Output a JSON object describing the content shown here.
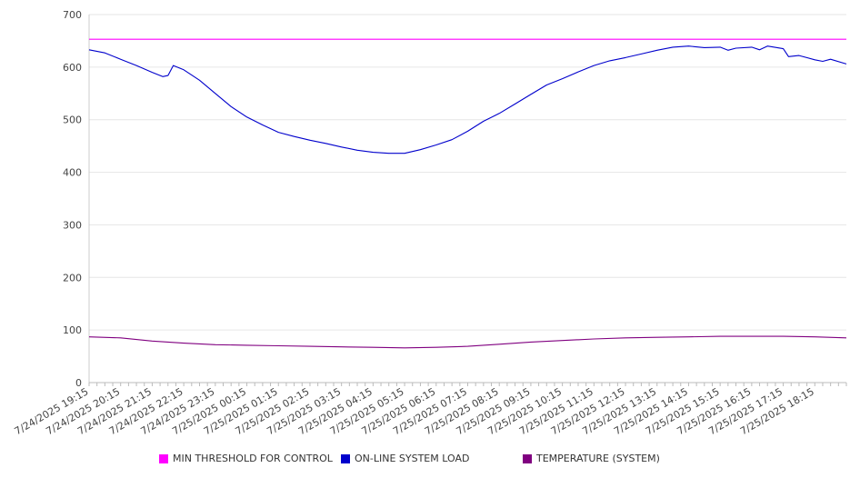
{
  "chart_data": {
    "type": "line",
    "title": "",
    "xlabel": "",
    "ylabel": "",
    "ylim": [
      0,
      700
    ],
    "y_ticks": [
      "0",
      "100",
      "200",
      "300",
      "400",
      "500",
      "600",
      "700"
    ],
    "x_start": "7/24/2025 19:15",
    "x_end": "7/25/2025 19:15",
    "x_tick_labels": [
      "7/24/2025 19:15",
      "7/24/2025 20:15",
      "7/24/2025 21:15",
      "7/24/2025 22:15",
      "7/24/2025 23:15",
      "7/25/2025 00:15",
      "7/25/2025 01:15",
      "7/25/2025 02:15",
      "7/25/2025 03:15",
      "7/25/2025 04:15",
      "7/25/2025 05:15",
      "7/25/2025 06:15",
      "7/25/2025 07:15",
      "7/25/2025 08:15",
      "7/25/2025 09:15",
      "7/25/2025 10:15",
      "7/25/2025 11:15",
      "7/25/2025 12:15",
      "7/25/2025 13:15",
      "7/25/2025 14:15",
      "7/25/2025 15:15",
      "7/25/2025 16:15",
      "7/25/2025 17:15",
      "7/25/2025 18:15"
    ],
    "grid": "horizontal",
    "legend_position": "bottom",
    "series": [
      {
        "name": "MIN THRESHOLD FOR CONTROL",
        "color": "#ff00ff",
        "points": [
          [
            "7/24/2025 19:15",
            653
          ],
          [
            "7/25/2025 19:15",
            653
          ]
        ]
      },
      {
        "name": "ON-LINE SYSTEM LOAD",
        "color": "#0000cc",
        "points": [
          [
            "7/24/2025 19:15",
            633
          ],
          [
            "7/24/2025 19:45",
            627
          ],
          [
            "7/24/2025 20:15",
            615
          ],
          [
            "7/24/2025 20:45",
            603
          ],
          [
            "7/24/2025 21:15",
            590
          ],
          [
            "7/24/2025 21:35",
            582
          ],
          [
            "7/24/2025 21:45",
            584
          ],
          [
            "7/24/2025 21:55",
            603
          ],
          [
            "7/24/2025 22:15",
            595
          ],
          [
            "7/24/2025 22:45",
            575
          ],
          [
            "7/24/2025 23:15",
            550
          ],
          [
            "7/24/2025 23:45",
            525
          ],
          [
            "7/25/2025 00:15",
            505
          ],
          [
            "7/25/2025 00:45",
            490
          ],
          [
            "7/25/2025 01:15",
            476
          ],
          [
            "7/25/2025 01:45",
            468
          ],
          [
            "7/25/2025 02:15",
            461
          ],
          [
            "7/25/2025 02:45",
            455
          ],
          [
            "7/25/2025 03:15",
            448
          ],
          [
            "7/25/2025 03:45",
            442
          ],
          [
            "7/25/2025 04:15",
            438
          ],
          [
            "7/25/2025 04:45",
            436
          ],
          [
            "7/25/2025 05:15",
            436
          ],
          [
            "7/25/2025 05:45",
            443
          ],
          [
            "7/25/2025 06:15",
            452
          ],
          [
            "7/25/2025 06:45",
            462
          ],
          [
            "7/25/2025 07:15",
            478
          ],
          [
            "7/25/2025 07:45",
            497
          ],
          [
            "7/25/2025 08:15",
            512
          ],
          [
            "7/25/2025 08:45",
            530
          ],
          [
            "7/25/2025 09:15",
            548
          ],
          [
            "7/25/2025 09:45",
            566
          ],
          [
            "7/25/2025 10:15",
            578
          ],
          [
            "7/25/2025 10:45",
            591
          ],
          [
            "7/25/2025 11:15",
            603
          ],
          [
            "7/25/2025 11:45",
            612
          ],
          [
            "7/25/2025 12:15",
            618
          ],
          [
            "7/25/2025 12:45",
            625
          ],
          [
            "7/25/2025 13:15",
            632
          ],
          [
            "7/25/2025 13:45",
            638
          ],
          [
            "7/25/2025 14:15",
            640
          ],
          [
            "7/25/2025 14:45",
            637
          ],
          [
            "7/25/2025 15:15",
            638
          ],
          [
            "7/25/2025 15:30",
            632
          ],
          [
            "7/25/2025 15:45",
            636
          ],
          [
            "7/25/2025 16:15",
            638
          ],
          [
            "7/25/2025 16:30",
            633
          ],
          [
            "7/25/2025 16:45",
            640
          ],
          [
            "7/25/2025 17:15",
            635
          ],
          [
            "7/25/2025 17:25",
            620
          ],
          [
            "7/25/2025 17:45",
            622
          ],
          [
            "7/25/2025 18:15",
            614
          ],
          [
            "7/25/2025 18:30",
            611
          ],
          [
            "7/25/2025 18:45",
            615
          ],
          [
            "7/25/2025 19:15",
            606
          ]
        ]
      },
      {
        "name": "TEMPERATURE (SYSTEM)",
        "color": "#800080",
        "points": [
          [
            "7/24/2025 19:15",
            87
          ],
          [
            "7/24/2025 20:15",
            85
          ],
          [
            "7/24/2025 21:15",
            79
          ],
          [
            "7/24/2025 22:15",
            75
          ],
          [
            "7/24/2025 23:15",
            72
          ],
          [
            "7/25/2025 00:15",
            71
          ],
          [
            "7/25/2025 01:15",
            70
          ],
          [
            "7/25/2025 02:15",
            69
          ],
          [
            "7/25/2025 03:15",
            68
          ],
          [
            "7/25/2025 04:15",
            67
          ],
          [
            "7/25/2025 05:15",
            66
          ],
          [
            "7/25/2025 06:15",
            67
          ],
          [
            "7/25/2025 07:15",
            69
          ],
          [
            "7/25/2025 08:15",
            73
          ],
          [
            "7/25/2025 09:15",
            77
          ],
          [
            "7/25/2025 10:15",
            80
          ],
          [
            "7/25/2025 11:15",
            83
          ],
          [
            "7/25/2025 12:15",
            85
          ],
          [
            "7/25/2025 13:15",
            86
          ],
          [
            "7/25/2025 14:15",
            87
          ],
          [
            "7/25/2025 15:15",
            88
          ],
          [
            "7/25/2025 16:15",
            88
          ],
          [
            "7/25/2025 17:15",
            88
          ],
          [
            "7/25/2025 18:15",
            87
          ],
          [
            "7/25/2025 19:15",
            85
          ]
        ]
      }
    ]
  }
}
